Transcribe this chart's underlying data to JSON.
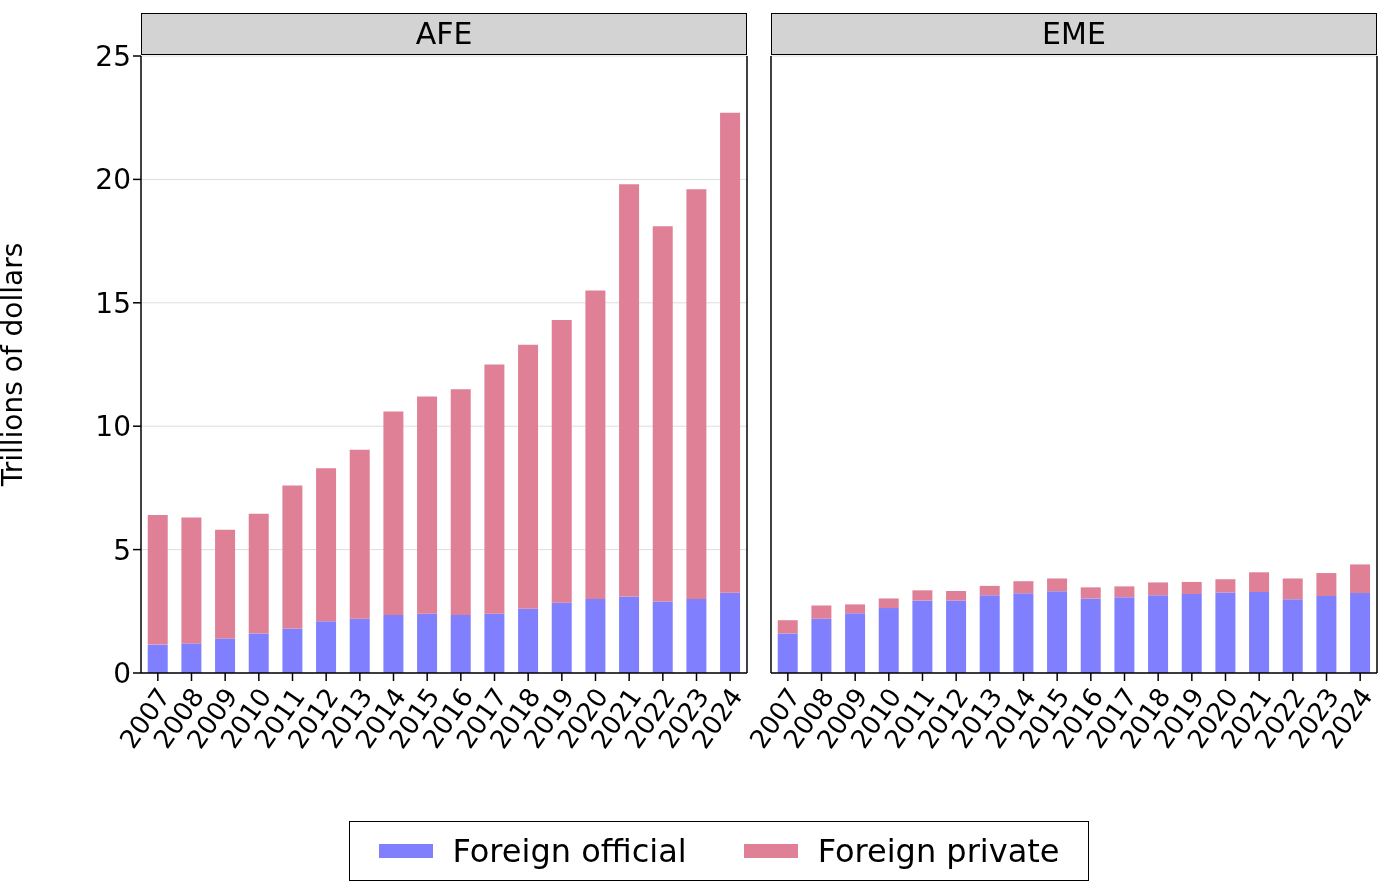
{
  "chart_data": [
    {
      "type": "bar",
      "title": "AFE",
      "ylabel": "Trillions of dollars",
      "stacked": true,
      "grid": "y",
      "legend": "bottom",
      "categories": [
        "2007",
        "2008",
        "2009",
        "2010",
        "2011",
        "2012",
        "2013",
        "2014",
        "2015",
        "2016",
        "2017",
        "2018",
        "2019",
        "2020",
        "2021",
        "2022",
        "2023",
        "2024"
      ],
      "ylim": [
        0,
        25
      ],
      "yticks": [
        0,
        5,
        10,
        15,
        20,
        25
      ],
      "series": [
        {
          "name": "Foreign official",
          "color": "#8080ff",
          "values": [
            1.15,
            1.2,
            1.4,
            1.6,
            1.8,
            2.1,
            2.2,
            2.35,
            2.4,
            2.35,
            2.4,
            2.6,
            2.85,
            3.0,
            3.1,
            2.9,
            3.0,
            3.25
          ]
        },
        {
          "name": "Foreign private",
          "color": "#e08097",
          "values": [
            5.25,
            5.1,
            4.4,
            4.85,
            5.8,
            6.2,
            6.85,
            8.25,
            8.8,
            9.15,
            10.1,
            10.7,
            11.45,
            12.5,
            16.7,
            15.2,
            16.6,
            19.45
          ]
        }
      ]
    },
    {
      "type": "bar",
      "title": "EME",
      "stacked": true,
      "grid": "y",
      "tick_labels": "x",
      "categories": [
        "2007",
        "2008",
        "2009",
        "2010",
        "2011",
        "2012",
        "2013",
        "2014",
        "2015",
        "2016",
        "2017",
        "2018",
        "2019",
        "2020",
        "2021",
        "2022",
        "2023",
        "2024"
      ],
      "ylim": [
        0,
        25
      ],
      "yticks": [
        0,
        5,
        10,
        15,
        20,
        25
      ],
      "series": [
        {
          "color": "#8080ff",
          "values": [
            1.6,
            2.2,
            2.42,
            2.63,
            2.94,
            2.94,
            3.15,
            3.23,
            3.31,
            3.02,
            3.07,
            3.15,
            3.2,
            3.26,
            3.28,
            2.99,
            3.12,
            3.24
          ]
        },
        {
          "color": "#e08097",
          "values": [
            0.54,
            0.54,
            0.36,
            0.39,
            0.41,
            0.38,
            0.38,
            0.49,
            0.52,
            0.45,
            0.44,
            0.52,
            0.49,
            0.54,
            0.8,
            0.84,
            0.93,
            1.16
          ]
        }
      ]
    }
  ]
}
